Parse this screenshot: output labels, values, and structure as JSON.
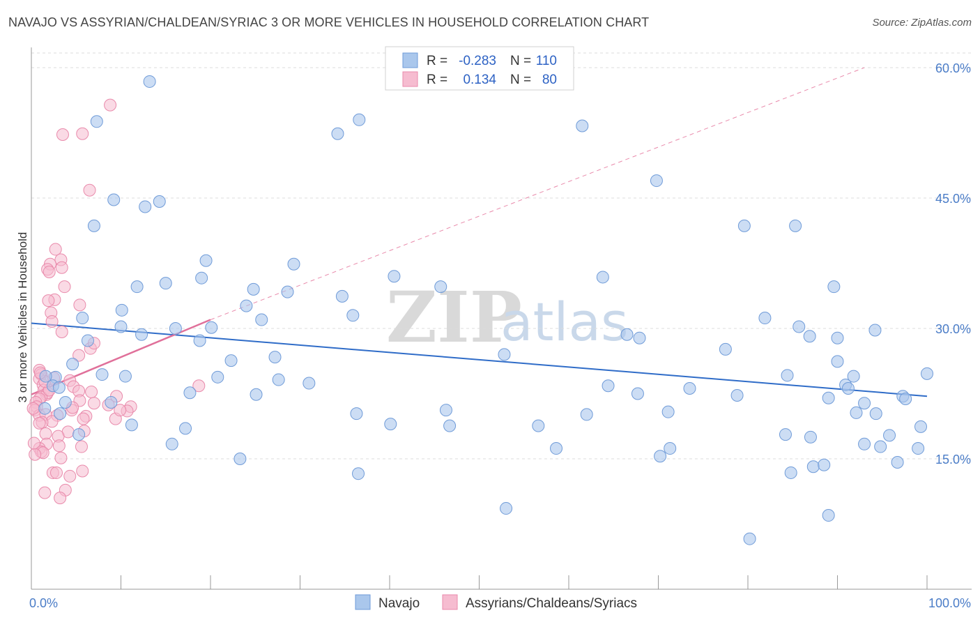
{
  "title": "NAVAJO VS ASSYRIAN/CHALDEAN/SYRIAC 3 OR MORE VEHICLES IN HOUSEHOLD CORRELATION CHART",
  "source": "Source: ZipAtlas.com",
  "watermark": {
    "zip": "ZIP",
    "atlas": "atlas"
  },
  "colors": {
    "blue_fill": "#aac7ec",
    "blue_stroke": "#6f9bd8",
    "blue_line": "#2f6cc8",
    "pink_fill": "#f6bcd0",
    "pink_stroke": "#e98aab",
    "pink_line": "#e0709a",
    "grid": "#dcdcdc",
    "axis_label": "#4a7cc7"
  },
  "chart_data": {
    "type": "scatter",
    "ylabel": "3 or more Vehicles in Household",
    "xlim": [
      0,
      100
    ],
    "ylim": [
      0,
      64
    ],
    "x_tick_labels": [
      {
        "value": 0,
        "label": "0.0%"
      },
      {
        "value": 100,
        "label": "100.0%"
      }
    ],
    "y_tick_labels": [
      {
        "value": 15,
        "label": "15.0%"
      },
      {
        "value": 30,
        "label": "30.0%"
      },
      {
        "value": 45,
        "label": "45.0%"
      },
      {
        "value": 60,
        "label": "60.0%"
      }
    ],
    "legend": {
      "r_label": "R =",
      "n_label": "N =",
      "rows": [
        {
          "series": "Navajo",
          "r": "-0.283",
          "n": "110"
        },
        {
          "series": "Assyrians/Chaldeans/Syriacs",
          "r": "0.134",
          "n": "80"
        }
      ]
    },
    "series": [
      {
        "name": "Navajo",
        "trend": {
          "x0": 0,
          "y0": 30.6,
          "x1": 100,
          "y1": 22.2
        },
        "points": [
          [
            13.2,
            58.4
          ],
          [
            7.3,
            53.8
          ],
          [
            34.2,
            52.4
          ],
          [
            36.6,
            54.0
          ],
          [
            61.5,
            53.3
          ],
          [
            69.8,
            47.0
          ],
          [
            9.2,
            44.8
          ],
          [
            12.7,
            44.0
          ],
          [
            14.3,
            44.6
          ],
          [
            7.0,
            41.8
          ],
          [
            79.6,
            41.8
          ],
          [
            85.3,
            41.8
          ],
          [
            19.5,
            37.8
          ],
          [
            29.3,
            37.4
          ],
          [
            19.0,
            35.8
          ],
          [
            40.5,
            36.0
          ],
          [
            63.8,
            35.9
          ],
          [
            15.0,
            35.2
          ],
          [
            11.8,
            34.8
          ],
          [
            24.8,
            34.5
          ],
          [
            28.6,
            34.2
          ],
          [
            45.7,
            34.8
          ],
          [
            34.7,
            33.7
          ],
          [
            89.6,
            34.8
          ],
          [
            10.1,
            32.1
          ],
          [
            24.0,
            32.6
          ],
          [
            5.7,
            31.2
          ],
          [
            35.9,
            31.5
          ],
          [
            25.7,
            31.0
          ],
          [
            81.9,
            31.2
          ],
          [
            10.0,
            30.2
          ],
          [
            16.1,
            30.0
          ],
          [
            20.1,
            30.1
          ],
          [
            85.7,
            30.2
          ],
          [
            94.2,
            29.8
          ],
          [
            12.3,
            29.3
          ],
          [
            6.3,
            28.6
          ],
          [
            18.8,
            28.6
          ],
          [
            66.5,
            29.3
          ],
          [
            67.9,
            28.9
          ],
          [
            86.9,
            29.1
          ],
          [
            90.0,
            28.9
          ],
          [
            77.5,
            27.6
          ],
          [
            52.8,
            27.0
          ],
          [
            27.2,
            26.7
          ],
          [
            22.3,
            26.3
          ],
          [
            4.6,
            25.9
          ],
          [
            90.0,
            26.2
          ],
          [
            7.9,
            24.7
          ],
          [
            10.5,
            24.5
          ],
          [
            20.8,
            24.4
          ],
          [
            27.6,
            24.1
          ],
          [
            31.0,
            23.7
          ],
          [
            84.4,
            24.6
          ],
          [
            91.8,
            24.5
          ],
          [
            2.7,
            24.4
          ],
          [
            1.6,
            24.5
          ],
          [
            2.4,
            23.4
          ],
          [
            3.1,
            23.2
          ],
          [
            64.4,
            23.4
          ],
          [
            73.5,
            23.1
          ],
          [
            90.9,
            23.5
          ],
          [
            91.2,
            23.1
          ],
          [
            17.7,
            22.6
          ],
          [
            25.1,
            22.4
          ],
          [
            67.7,
            22.5
          ],
          [
            78.8,
            22.3
          ],
          [
            100.0,
            24.8
          ],
          [
            89.0,
            22.0
          ],
          [
            97.3,
            22.2
          ],
          [
            97.6,
            21.9
          ],
          [
            8.9,
            21.5
          ],
          [
            3.8,
            21.5
          ],
          [
            3.2,
            20.2
          ],
          [
            1.5,
            20.8
          ],
          [
            46.3,
            20.6
          ],
          [
            36.3,
            20.2
          ],
          [
            62.0,
            20.1
          ],
          [
            71.1,
            20.4
          ],
          [
            92.1,
            20.3
          ],
          [
            94.3,
            20.2
          ],
          [
            93.0,
            21.4
          ],
          [
            40.1,
            19.0
          ],
          [
            11.2,
            18.9
          ],
          [
            17.2,
            18.5
          ],
          [
            56.6,
            18.8
          ],
          [
            46.7,
            18.8
          ],
          [
            99.3,
            18.7
          ],
          [
            5.3,
            17.8
          ],
          [
            84.2,
            17.8
          ],
          [
            87.0,
            17.5
          ],
          [
            95.8,
            17.7
          ],
          [
            15.7,
            16.7
          ],
          [
            58.6,
            16.2
          ],
          [
            71.3,
            16.2
          ],
          [
            93.0,
            16.7
          ],
          [
            94.8,
            16.4
          ],
          [
            99.0,
            16.2
          ],
          [
            23.3,
            15.0
          ],
          [
            70.2,
            15.3
          ],
          [
            96.7,
            14.6
          ],
          [
            84.8,
            13.4
          ],
          [
            87.3,
            14.1
          ],
          [
            88.5,
            14.3
          ],
          [
            36.5,
            13.3
          ],
          [
            53.0,
            9.3
          ],
          [
            89.0,
            8.5
          ],
          [
            80.2,
            5.8
          ]
        ]
      },
      {
        "name": "Assyrians/Chaldeans/Syriacs",
        "trend": {
          "x0": 0,
          "y0": 22.4,
          "x1": 20,
          "y1": 31.0
        },
        "extension": {
          "x0": 20,
          "y0": 31.0,
          "x1": 93,
          "y1": 60.0
        },
        "points": [
          [
            8.8,
            55.7
          ],
          [
            3.5,
            52.3
          ],
          [
            5.7,
            52.4
          ],
          [
            6.5,
            45.9
          ],
          [
            2.7,
            39.1
          ],
          [
            2.1,
            37.4
          ],
          [
            3.3,
            37.9
          ],
          [
            1.8,
            36.8
          ],
          [
            2.0,
            36.5
          ],
          [
            3.4,
            37.0
          ],
          [
            3.7,
            34.8
          ],
          [
            2.6,
            33.3
          ],
          [
            1.9,
            33.2
          ],
          [
            5.4,
            32.7
          ],
          [
            2.2,
            31.8
          ],
          [
            2.3,
            30.8
          ],
          [
            3.4,
            29.6
          ],
          [
            6.6,
            27.7
          ],
          [
            7.0,
            28.3
          ],
          [
            5.3,
            26.9
          ],
          [
            0.9,
            25.2
          ],
          [
            1.1,
            24.7
          ],
          [
            0.9,
            24.2
          ],
          [
            1.3,
            23.5
          ],
          [
            1.4,
            22.9
          ],
          [
            1.7,
            22.4
          ],
          [
            1.8,
            22.6
          ],
          [
            1.1,
            22.1
          ],
          [
            0.9,
            21.9
          ],
          [
            4.3,
            24.0
          ],
          [
            4.7,
            23.3
          ],
          [
            5.3,
            22.8
          ],
          [
            0.5,
            21.5
          ],
          [
            0.6,
            21.0
          ],
          [
            0.4,
            20.6
          ],
          [
            0.9,
            20.0
          ],
          [
            1.6,
            20.1
          ],
          [
            2.9,
            20.0
          ],
          [
            4.5,
            20.6
          ],
          [
            5.4,
            21.7
          ],
          [
            7.0,
            21.4
          ],
          [
            8.6,
            21.2
          ],
          [
            9.5,
            22.2
          ],
          [
            11.1,
            21.0
          ],
          [
            10.7,
            20.5
          ],
          [
            6.1,
            19.9
          ],
          [
            5.8,
            19.6
          ],
          [
            9.4,
            19.6
          ],
          [
            2.3,
            19.3
          ],
          [
            1.2,
            19.2
          ],
          [
            0.9,
            19.1
          ],
          [
            4.1,
            18.1
          ],
          [
            1.6,
            17.9
          ],
          [
            3.0,
            17.6
          ],
          [
            5.9,
            18.2
          ],
          [
            1.7,
            16.7
          ],
          [
            3.1,
            16.5
          ],
          [
            5.6,
            16.4
          ],
          [
            0.9,
            16.2
          ],
          [
            1.1,
            15.8
          ],
          [
            1.3,
            15.7
          ],
          [
            3.3,
            15.1
          ],
          [
            0.4,
            15.5
          ],
          [
            2.4,
            13.4
          ],
          [
            2.8,
            13.4
          ],
          [
            5.7,
            13.6
          ],
          [
            4.3,
            13.0
          ],
          [
            1.5,
            11.1
          ],
          [
            3.8,
            11.4
          ],
          [
            3.2,
            10.5
          ],
          [
            9.9,
            20.6
          ],
          [
            6.7,
            22.7
          ],
          [
            18.7,
            23.4
          ],
          [
            4.6,
            20.9
          ],
          [
            2.0,
            22.9
          ],
          [
            1.5,
            23.9
          ],
          [
            2.5,
            24.3
          ],
          [
            1.0,
            24.9
          ],
          [
            0.2,
            20.8
          ],
          [
            0.3,
            16.8
          ]
        ]
      }
    ]
  }
}
